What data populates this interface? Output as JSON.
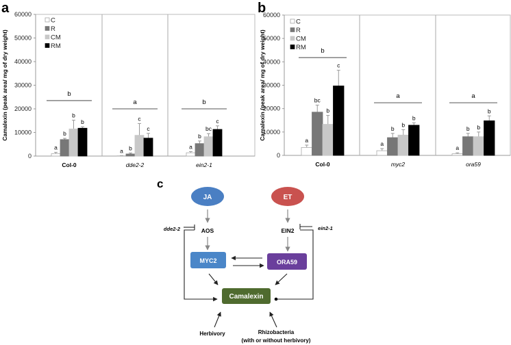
{
  "panels": {
    "a": "a",
    "b": "b",
    "c": "c"
  },
  "legend": [
    "C",
    "R",
    "CM",
    "RM"
  ],
  "colors": {
    "C": "#ffffff",
    "R": "#777777",
    "CM": "#c8c8c8",
    "RM": "#000000",
    "JA": "#4a7fc3",
    "ET": "#c9524f",
    "MYC2": "#4a86c8",
    "ORA59": "#6a3f9c",
    "Camalexin": "#4f6b2f"
  },
  "chart_data": [
    {
      "type": "bar",
      "panel": "a",
      "ylabel": "Camalexin (peak area/ mg of dry weight)",
      "ylim": [
        0,
        60000
      ],
      "yticks": [
        "0",
        "10000",
        "20000",
        "30000",
        "40000",
        "50000",
        "60000"
      ],
      "categories": [
        "Col-0",
        "dde2-2",
        "ein2-1"
      ],
      "category_italic": [
        false,
        true,
        true
      ],
      "series": [
        {
          "name": "C",
          "values": [
            1000,
            100,
            1400
          ],
          "errors": [
            600,
            100,
            500
          ],
          "letters": [
            "a",
            "a",
            "a"
          ]
        },
        {
          "name": "R",
          "values": [
            7000,
            900,
            5300
          ],
          "errors": [
            500,
            400,
            1100
          ],
          "letters": [
            "b",
            "b",
            "b"
          ]
        },
        {
          "name": "CM",
          "values": [
            11500,
            8800,
            8200
          ],
          "errors": [
            3700,
            5000,
            1300
          ],
          "letters": [
            "b",
            "c",
            "bc"
          ]
        },
        {
          "name": "RM",
          "values": [
            11800,
            7600,
            11300
          ],
          "errors": [
            600,
            2000,
            1500
          ],
          "letters": [
            "b",
            "c",
            "c"
          ]
        }
      ],
      "group_letters": [
        "b",
        "a",
        "b"
      ],
      "group_bracket_values": [
        23500,
        20000,
        20000
      ]
    },
    {
      "type": "bar",
      "panel": "b",
      "ylabel": "Camalexin (peak area/ mg of dry weight)",
      "ylim": [
        0,
        60000
      ],
      "yticks": [
        "0",
        "10000",
        "20000",
        "30000",
        "40000",
        "50000",
        "60000"
      ],
      "categories": [
        "Col-0",
        "myc2",
        "ora59"
      ],
      "category_italic": [
        false,
        true,
        true
      ],
      "series": [
        {
          "name": "C",
          "values": [
            3400,
            2000,
            700
          ],
          "errors": [
            1000,
            900,
            400
          ],
          "letters": [
            "a",
            "a",
            "a"
          ]
        },
        {
          "name": "R",
          "values": [
            18500,
            7600,
            8000
          ],
          "errors": [
            3000,
            1800,
            1400
          ],
          "letters": [
            "bc",
            "b",
            "b"
          ]
        },
        {
          "name": "CM",
          "values": [
            13300,
            8700,
            8000
          ],
          "errors": [
            3800,
            2300,
            2000
          ],
          "letters": [
            "b",
            "b",
            "b"
          ]
        },
        {
          "name": "RM",
          "values": [
            29700,
            12900,
            14800
          ],
          "errors": [
            6700,
            1000,
            2100
          ],
          "letters": [
            "c",
            "b",
            "b"
          ]
        }
      ],
      "group_letters": [
        "b",
        "a",
        "a"
      ],
      "group_bracket_values": [
        41800,
        22500,
        22500
      ]
    }
  ],
  "diagram": {
    "JA": "JA",
    "ET": "ET",
    "AOS": "AOS",
    "EIN2": "EIN2",
    "MYC2": "MYC2",
    "ORA59": "ORA59",
    "Camalexin": "Camalexin",
    "mutant_left": "dde2-2",
    "mutant_right": "ein2-1",
    "herbivory": "Herbivory",
    "rhizo_line1": "Rhizobacteria",
    "rhizo_line2": "(with or without herbivory)"
  }
}
